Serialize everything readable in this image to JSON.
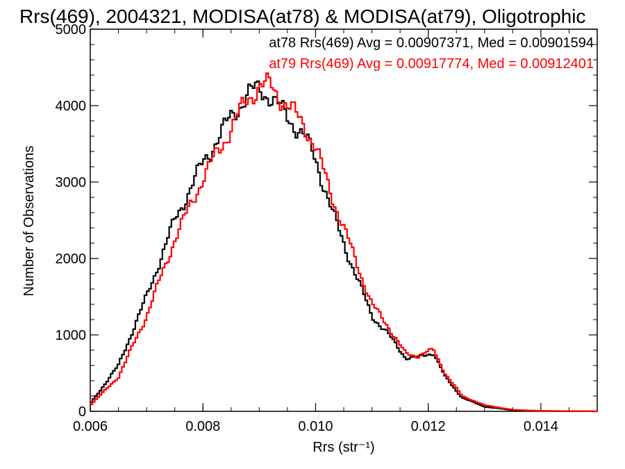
{
  "chart_data": {
    "type": "line",
    "title": "Rrs(469), 2004321, MODISA(at78) & MODISA(at79), Oligotrophic",
    "xlabel": "Rrs (str⁻¹)",
    "ylabel": "Number of Observations",
    "xlim": [
      0.006,
      0.015
    ],
    "ylim": [
      0,
      5000
    ],
    "x_ticks": [
      0.006,
      0.008,
      0.01,
      0.012,
      0.014
    ],
    "x_tick_labels": [
      "0.006",
      "0.008",
      "0.010",
      "0.012",
      "0.014"
    ],
    "y_ticks": [
      0,
      1000,
      2000,
      3000,
      4000,
      5000
    ],
    "y_tick_labels": [
      "0",
      "1000",
      "2000",
      "3000",
      "4000",
      "5000"
    ],
    "grid": false,
    "legend_placement": "top-right",
    "series": [
      {
        "name": "at78",
        "legend_text": "at78 Rrs(469) Avg = 0.00907371, Med = 0.00901594",
        "color": "#000000",
        "x": [
          0.006,
          0.0065,
          0.007,
          0.0075,
          0.008,
          0.0085,
          0.0088,
          0.009,
          0.0092,
          0.0095,
          0.0098,
          0.01,
          0.0103,
          0.0106,
          0.011,
          0.0113,
          0.0116,
          0.0118,
          0.012,
          0.0121,
          0.0123,
          0.0126,
          0.013,
          0.0135,
          0.014,
          0.015
        ],
        "y": [
          100,
          600,
          1500,
          2500,
          3250,
          3850,
          4150,
          4220,
          4120,
          3850,
          3600,
          3300,
          2600,
          2000,
          1250,
          1000,
          700,
          700,
          750,
          760,
          450,
          180,
          60,
          15,
          5,
          0
        ]
      },
      {
        "name": "at79",
        "legend_text": "at79 Rrs(469) Avg = 0.00917774, Med = 0.00912401",
        "color": "#ff0000",
        "x": [
          0.006,
          0.0065,
          0.007,
          0.0075,
          0.008,
          0.0085,
          0.0088,
          0.009,
          0.0092,
          0.0095,
          0.0098,
          0.01,
          0.0103,
          0.0106,
          0.011,
          0.0113,
          0.0116,
          0.0118,
          0.012,
          0.0121,
          0.0123,
          0.0126,
          0.013,
          0.0135,
          0.014,
          0.015
        ],
        "y": [
          80,
          450,
          1250,
          2250,
          3050,
          3700,
          4100,
          4250,
          4260,
          4000,
          3750,
          3450,
          2800,
          2200,
          1400,
          1100,
          750,
          720,
          790,
          790,
          500,
          200,
          80,
          20,
          6,
          0
        ]
      }
    ]
  }
}
